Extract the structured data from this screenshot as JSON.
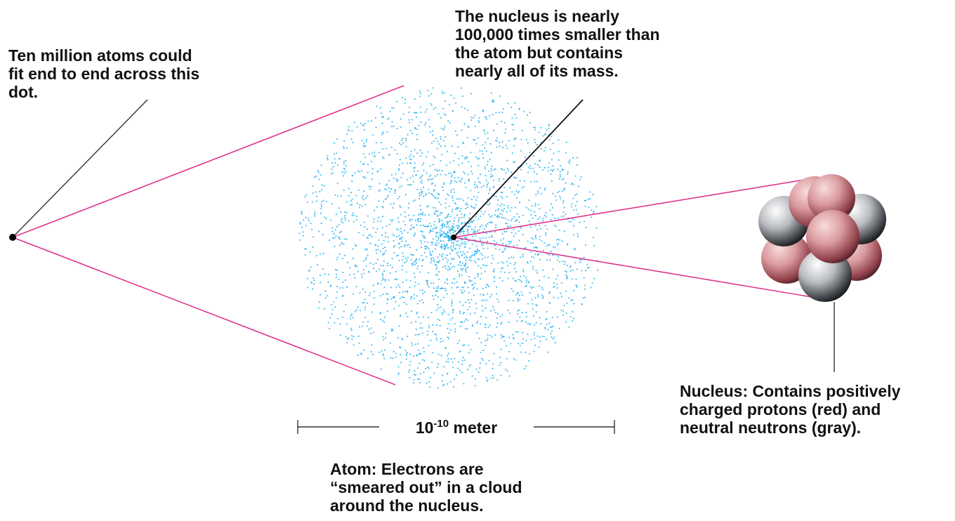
{
  "labels": {
    "dot_callout": [
      "Ten million atoms could",
      "fit end to end across this",
      "dot."
    ],
    "nucleus_size_callout": [
      "The nucleus is nearly",
      "100,000 times smaller than",
      "the atom but contains",
      "nearly all of its mass."
    ],
    "nucleus_callout": [
      "Nucleus: Contains positively",
      "charged protons (red) and",
      "neutral neutrons (gray)."
    ],
    "atom_callout": [
      "Atom: Electrons are",
      "“smeared out” in a cloud",
      "around the nucleus."
    ]
  },
  "scale_bar": {
    "base": "10",
    "exponent": "-10",
    "unit": "meter"
  },
  "colors": {
    "zoom_lines": "#e0358f",
    "leader_lines": "#333333",
    "electron_cloud": "#38b8f0",
    "proton": "#b55a66",
    "neutron": "#666a70",
    "text": "#111111"
  }
}
